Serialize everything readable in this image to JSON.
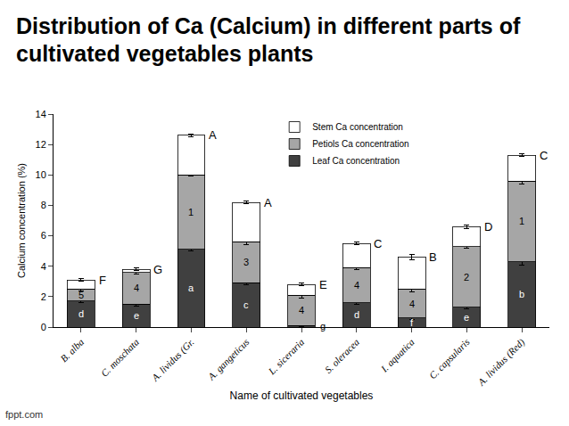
{
  "chart_data": {
    "type": "bar",
    "stacked": true,
    "title": "Distribution of Ca (Calcium) in different parts of cultivated vegetables plants",
    "footer": "fppt.com",
    "x_label": "Name of cultivated vegetables",
    "y_label": "Calcium concentration (%)",
    "categories": [
      "B. alba",
      "C. moschata",
      "A. lividus (Gr.",
      "A. gangeticus",
      "L. siceraria",
      "S. oleracea",
      "I. aquatica",
      "C. capsularis",
      "A. lividus (Red)"
    ],
    "series": [
      {
        "name": "Leaf Ca concentration",
        "color": "#404040",
        "values": [
          1.7,
          1.5,
          5.1,
          2.9,
          0.1,
          1.6,
          0.6,
          1.3,
          4.3
        ],
        "error": [
          0.1,
          0.1,
          0.1,
          0.1,
          0.05,
          0.1,
          0.1,
          0.1,
          0.2
        ],
        "significance": [
          "d",
          "e",
          "a",
          "c",
          "g",
          "d",
          "f",
          "e",
          "b"
        ]
      },
      {
        "name": "Petiols Ca concentration",
        "color": "#a6a6a6",
        "values": [
          0.8,
          2.1,
          4.9,
          2.7,
          2.0,
          2.3,
          1.9,
          4.0,
          5.3
        ],
        "error": [
          0.1,
          0.1,
          0.1,
          0.2,
          0.2,
          0.1,
          0.2,
          0.1,
          0.2
        ],
        "significance": [
          "5",
          "4",
          "1",
          "3",
          "4",
          "4",
          "4",
          "2",
          "1"
        ]
      },
      {
        "name": "Stem Ca concentration",
        "color": "#ffffff",
        "values": [
          0.6,
          0.2,
          2.6,
          2.6,
          0.7,
          1.6,
          2.1,
          1.3,
          1.7
        ],
        "error": [
          0.1,
          0.1,
          0.1,
          0.1,
          0.1,
          0.1,
          0.2,
          0.1,
          0.1
        ],
        "significance": [
          "F",
          "G",
          "A",
          "A",
          "E",
          "C",
          "B",
          "D",
          "C"
        ]
      }
    ],
    "ylim": [
      0,
      14
    ],
    "yticks": [
      0,
      2,
      4,
      6,
      8,
      10,
      12,
      14
    ],
    "grid": false,
    "legend": "top"
  }
}
